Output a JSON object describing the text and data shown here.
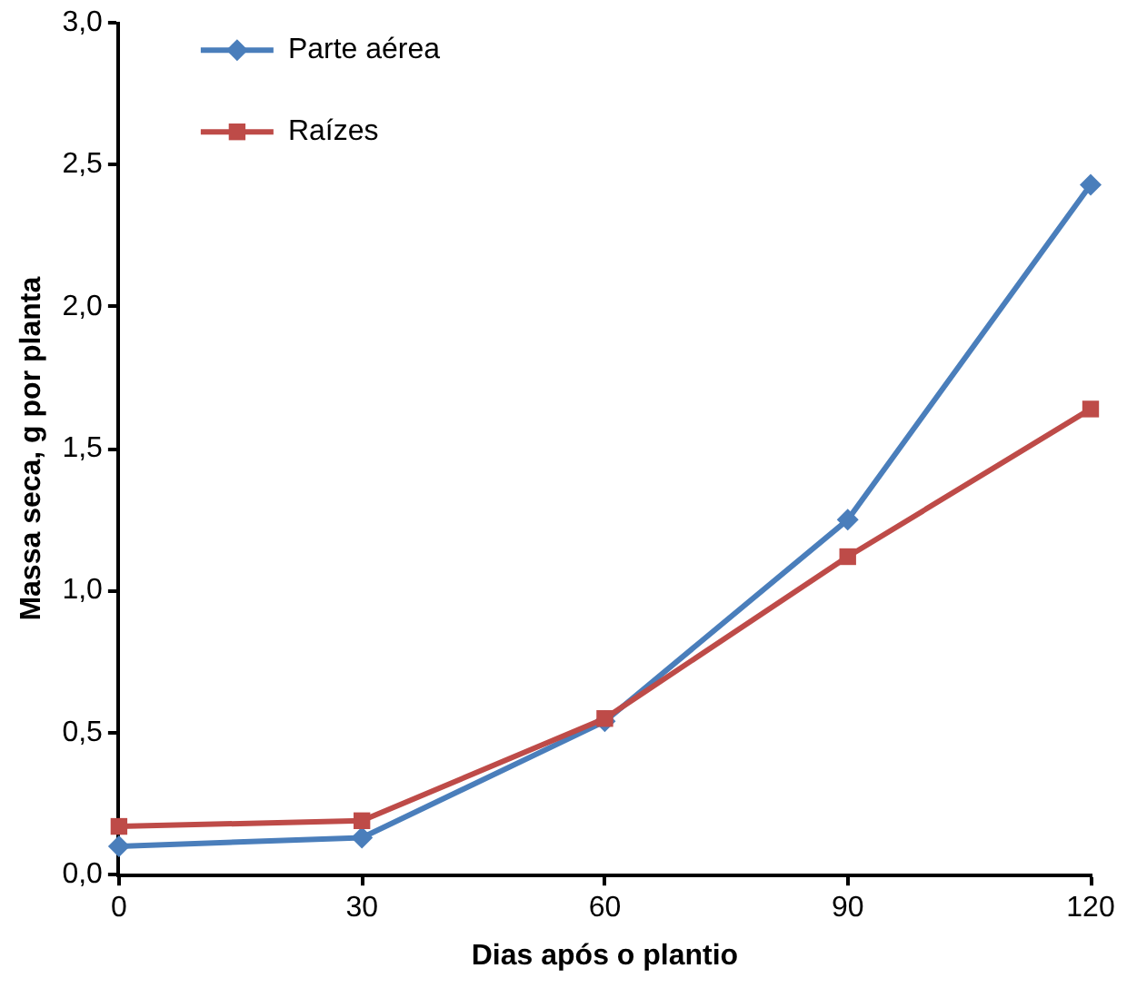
{
  "chart_data": {
    "type": "line",
    "xlabel": "Dias após o plantio",
    "ylabel": "Massa seca, g por planta",
    "x": [
      0,
      30,
      60,
      90,
      120
    ],
    "series": [
      {
        "name": "Parte aérea",
        "color": "#4a7ebb",
        "values": [
          0.1,
          0.13,
          0.54,
          1.25,
          2.43
        ],
        "marker": "diamond"
      },
      {
        "name": "Raízes",
        "color": "#be4b48",
        "values": [
          0.17,
          0.19,
          0.55,
          1.12,
          1.64
        ],
        "marker": "square"
      }
    ],
    "xlim": [
      0,
      120
    ],
    "xticks": [
      0,
      30,
      60,
      90,
      120
    ],
    "ylim": [
      0,
      3
    ],
    "yticks": [
      {
        "value": 0,
        "label": "0,0"
      },
      {
        "value": 0.5,
        "label": "0,5"
      },
      {
        "value": 1,
        "label": "1,0"
      },
      {
        "value": 1.5,
        "label": "1,5"
      },
      {
        "value": 2,
        "label": "2,0"
      },
      {
        "value": 2.5,
        "label": "2,5"
      },
      {
        "value": 3,
        "label": "3,0"
      }
    ],
    "grid": false,
    "legend": "top left",
    "line_style": "solid"
  }
}
